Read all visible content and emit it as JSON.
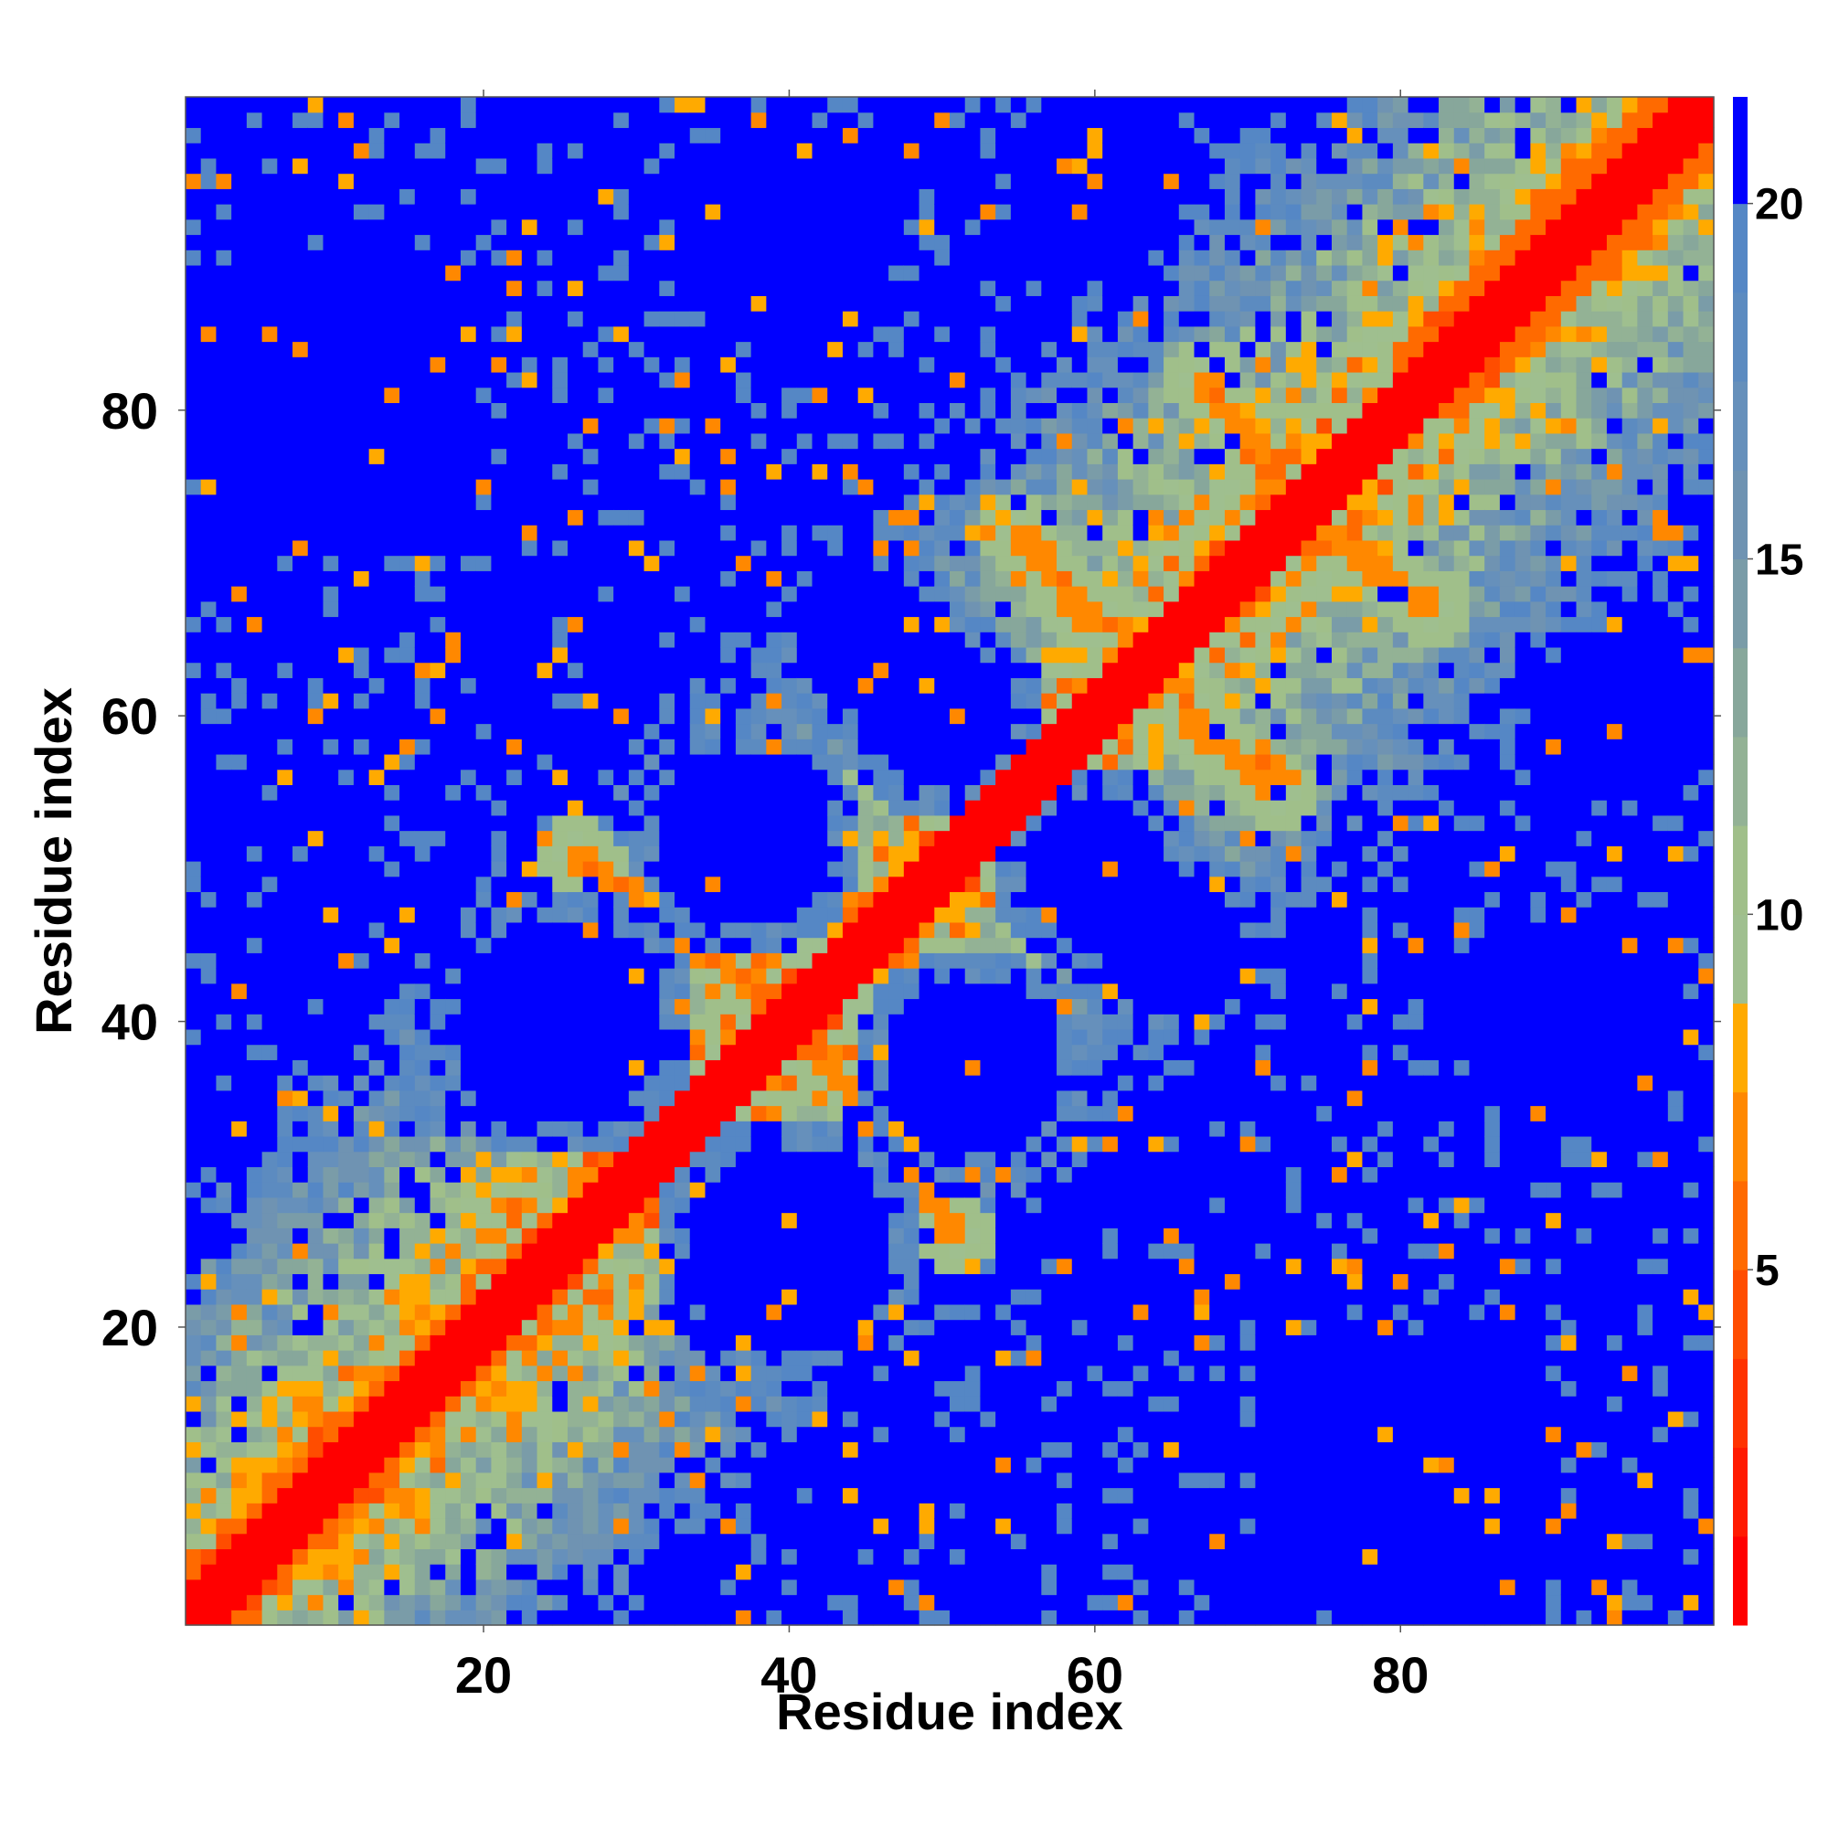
{
  "chart_data": {
    "type": "heatmap",
    "title": "",
    "xlabel": "Residue index",
    "ylabel": "Residue index",
    "n_residues": 100,
    "xlim": [
      1,
      100
    ],
    "ylim": [
      1,
      100
    ],
    "x_ticks": [
      20,
      40,
      60,
      80
    ],
    "y_ticks": [
      20,
      40,
      60,
      80
    ],
    "x_tick_labels": [
      "20",
      "40",
      "60",
      "80"
    ],
    "y_tick_labels": [
      "20",
      "40",
      "60",
      "80"
    ],
    "colorbar": {
      "range": [
        0,
        21.5
      ],
      "ticks": [
        5,
        10,
        15,
        20
      ],
      "tick_labels": [
        "5",
        "10",
        "15",
        "20"
      ],
      "levels": [
        {
          "max": 1.25,
          "color": "#ff0000"
        },
        {
          "max": 2.5,
          "color": "#ff1a00"
        },
        {
          "max": 3.75,
          "color": "#ff3300"
        },
        {
          "max": 5.0,
          "color": "#ff4d00"
        },
        {
          "max": 6.25,
          "color": "#ff6a00"
        },
        {
          "max": 7.5,
          "color": "#ff8800"
        },
        {
          "max": 8.75,
          "color": "#ffaa00"
        },
        {
          "max": 10.0,
          "color": "#9fbf8f"
        },
        {
          "max": 11.25,
          "color": "#a0bf8a"
        },
        {
          "max": 12.5,
          "color": "#93b295"
        },
        {
          "max": 13.75,
          "color": "#87a79b"
        },
        {
          "max": 15.0,
          "color": "#7a9ca8"
        },
        {
          "max": 16.25,
          "color": "#6f93b2"
        },
        {
          "max": 17.5,
          "color": "#6690bb"
        },
        {
          "max": 18.75,
          "color": "#5c8bc0"
        },
        {
          "max": 20.0,
          "color": "#5587c5"
        },
        {
          "max": 21.5,
          "color": "#0000ff"
        }
      ]
    },
    "matrix_description": "Symmetric residue-residue distance map: red main diagonal (distance ~0-4), orange secondary diagonal structures, green-blue intermediate distances, saturated blue (>20) far contacts.",
    "contact_features": [
      {
        "kind": "diagonal",
        "width": 2.2
      },
      {
        "kind": "band",
        "from": [
          1,
          1
        ],
        "to": [
          22,
          22
        ],
        "offset": 3,
        "value": 5.5
      },
      {
        "kind": "band",
        "from": [
          80,
          80
        ],
        "to": [
          100,
          100
        ],
        "offset": 4,
        "value": 5.5
      },
      {
        "kind": "antiparallel",
        "from": [
          38,
          42
        ],
        "to": [
          26,
          51
        ],
        "value": 6
      },
      {
        "kind": "antiparallel",
        "from": [
          42,
          38
        ],
        "to": [
          51,
          26
        ],
        "value": 6
      },
      {
        "kind": "antiparallel",
        "from": [
          50,
          54
        ],
        "to": [
          42,
          63
        ],
        "value": 6
      },
      {
        "kind": "antiparallel",
        "from": [
          54,
          50
        ],
        "to": [
          63,
          42
        ],
        "value": 6
      },
      {
        "kind": "antiparallel",
        "from": [
          60,
          66
        ],
        "to": [
          55,
          72
        ],
        "value": 6
      },
      {
        "kind": "antiparallel",
        "from": [
          66,
          60
        ],
        "to": [
          72,
          55
        ],
        "value": 6
      },
      {
        "kind": "antiparallel",
        "from": [
          72,
          75
        ],
        "to": [
          67,
          82
        ],
        "value": 6
      },
      {
        "kind": "antiparallel",
        "from": [
          75,
          72
        ],
        "to": [
          82,
          67
        ],
        "value": 6
      }
    ],
    "far_regions": [
      {
        "cx": 50,
        "cy": 60,
        "r": 5
      },
      {
        "cx": 60,
        "cy": 50,
        "r": 5
      },
      {
        "cx": 37,
        "cy": 52,
        "r": 6
      },
      {
        "cx": 52,
        "cy": 37,
        "r": 6
      },
      {
        "cx": 45,
        "cy": 65,
        "r": 5
      },
      {
        "cx": 65,
        "cy": 45,
        "r": 5
      },
      {
        "cx": 25,
        "cy": 40,
        "r": 7
      },
      {
        "cx": 40,
        "cy": 25,
        "r": 7
      },
      {
        "cx": 10,
        "cy": 80,
        "r": 10
      },
      {
        "cx": 80,
        "cy": 10,
        "r": 10
      },
      {
        "cx": 40,
        "cy": 92,
        "r": 7
      },
      {
        "cx": 92,
        "cy": 40,
        "r": 7
      },
      {
        "cx": 60,
        "cy": 95,
        "r": 6
      },
      {
        "cx": 95,
        "cy": 60,
        "r": 6
      }
    ]
  }
}
